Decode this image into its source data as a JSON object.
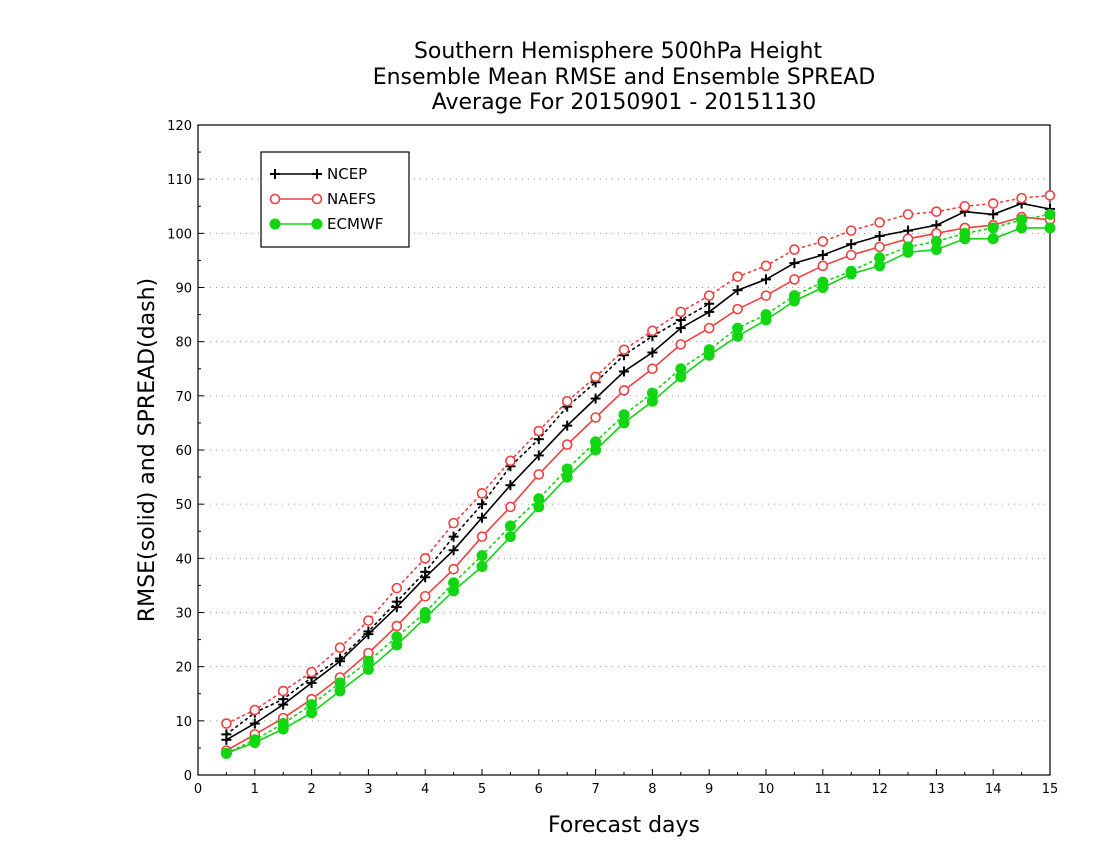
{
  "chart_data": {
    "type": "line",
    "title_lines": [
      "Southern Hemisphere 500hPa Height",
      "Ensemble Mean RMSE and Ensemble SPREAD",
      "Average For 20150901 - 20151130"
    ],
    "xlabel": "Forecast days",
    "ylabel": "RMSE(solid) and SPREAD(dash)",
    "xlim": [
      0,
      15
    ],
    "ylim": [
      0,
      120
    ],
    "x_ticks": [
      "0",
      "1",
      "2",
      "3",
      "4",
      "5",
      "6",
      "7",
      "8",
      "9",
      "10",
      "11",
      "12",
      "13",
      "14",
      "15"
    ],
    "y_ticks": [
      "0",
      "10",
      "20",
      "30",
      "40",
      "50",
      "60",
      "70",
      "80",
      "90",
      "100",
      "110",
      "120"
    ],
    "grid": "horizontal dotted",
    "legend_position": "top-left",
    "x": [
      0.5,
      1,
      1.5,
      2,
      2.5,
      3,
      3.5,
      4,
      4.5,
      5,
      5.5,
      6,
      6.5,
      7,
      7.5,
      8,
      8.5,
      9,
      9.5,
      10,
      10.5,
      11,
      11.5,
      12,
      12.5,
      13,
      13.5,
      14,
      14.5,
      15
    ],
    "series": [
      {
        "name": "NCEP",
        "color": "#000000",
        "marker": "plus",
        "rmse": [
          6.5,
          9.5,
          13,
          17,
          21,
          26,
          31,
          36.5,
          41.5,
          47.5,
          53.5,
          59,
          64.5,
          69.5,
          74.5,
          78,
          82.5,
          85.5,
          89.5,
          91.5,
          94.5,
          96,
          98,
          99.5,
          100.5,
          101.5,
          104,
          103.5,
          105.5,
          104.5
        ],
        "spread": [
          7.5,
          11.5,
          14,
          18,
          21.5,
          26.5,
          32,
          37.5,
          44,
          50,
          57,
          62,
          68,
          72.5,
          77.5,
          81,
          84,
          87,
          null,
          null,
          null,
          null,
          null,
          null,
          null,
          null,
          null,
          null,
          null,
          null
        ]
      },
      {
        "name": "NAEFS",
        "color": "#f04040",
        "marker": "open-circle",
        "rmse": [
          4.5,
          7.5,
          10.5,
          14,
          18,
          22.5,
          27.5,
          33,
          38,
          44,
          49.5,
          55.5,
          61,
          66,
          71,
          75,
          79.5,
          82.5,
          86,
          88.5,
          91.5,
          94,
          96,
          97.5,
          99,
          100,
          101,
          101.5,
          103,
          102.5
        ],
        "spread": [
          9.5,
          12,
          15.5,
          19,
          23.5,
          28.5,
          34.5,
          40,
          46.5,
          52,
          58,
          63.5,
          69,
          73.5,
          78.5,
          82,
          85.5,
          88.5,
          92,
          94,
          97,
          98.5,
          100.5,
          102,
          103.5,
          104,
          105,
          105.5,
          106.5,
          107
        ]
      },
      {
        "name": "ECMWF",
        "color": "#11d611",
        "marker": "filled-circle",
        "rmse": [
          4,
          6,
          8.5,
          11.5,
          15.5,
          19.5,
          24,
          29,
          34,
          38.5,
          44,
          49.5,
          55,
          60,
          65,
          69,
          73.5,
          77.5,
          81,
          84,
          87.5,
          90,
          92.5,
          94,
          96.5,
          97,
          99,
          99,
          101,
          101
        ],
        "spread": [
          4,
          6.5,
          9.5,
          13,
          17,
          21,
          25.5,
          30,
          35.5,
          40.5,
          46,
          51,
          56.5,
          61.5,
          66.5,
          70.5,
          75,
          78.5,
          82.5,
          85,
          88.5,
          91,
          93,
          95.5,
          97.5,
          98.5,
          100,
          101,
          102.5,
          103.5
        ]
      }
    ]
  }
}
